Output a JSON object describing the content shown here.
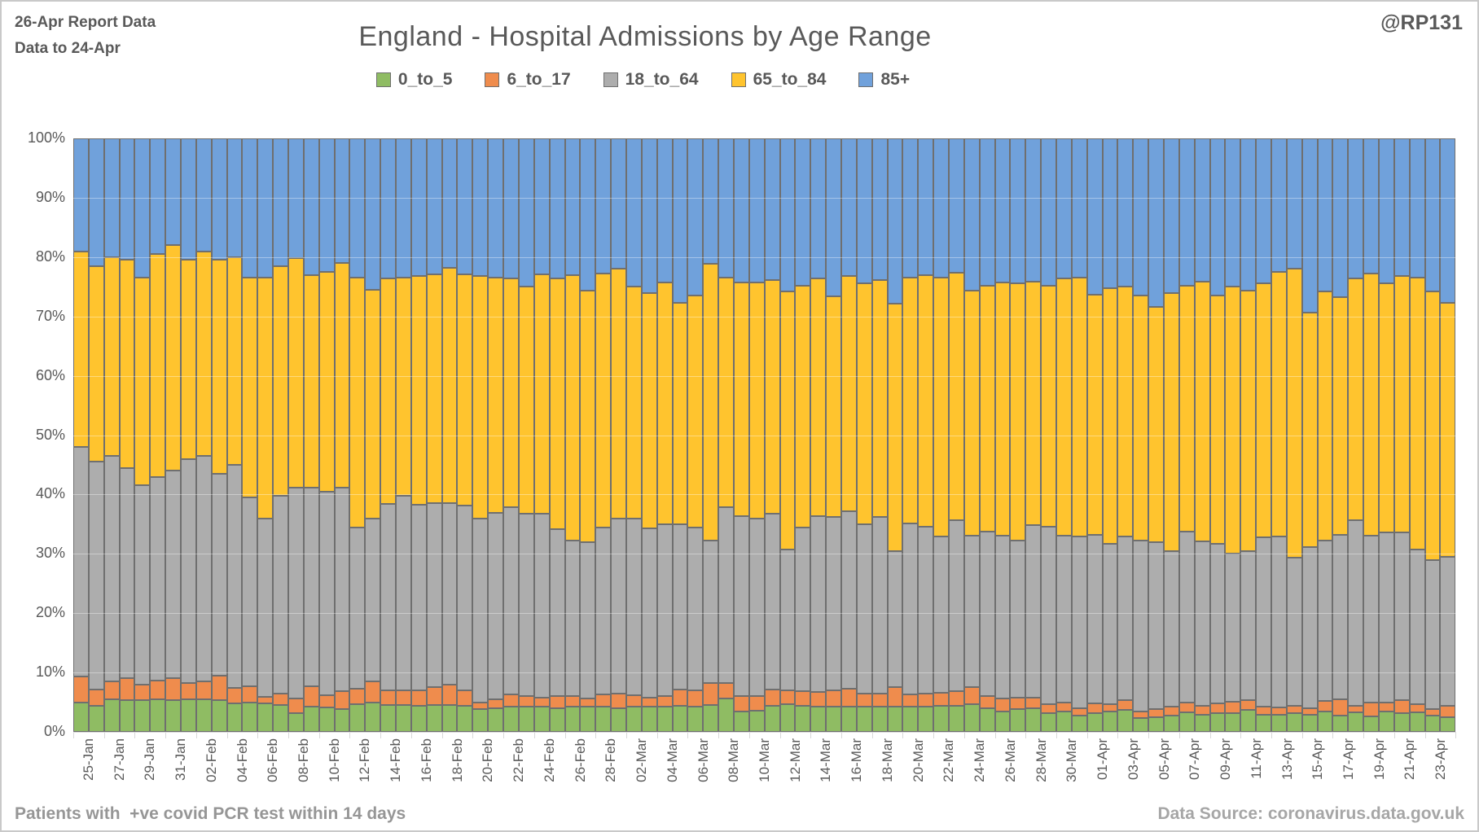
{
  "header": {
    "report_line1": "26-Apr Report Data",
    "report_line2": "Data to 24-Apr",
    "handle": "@RP131"
  },
  "footer": {
    "left": "Patients with  +ve covid PCR test within 14 days",
    "right": "Data Source: coronavirus.data.gov.uk"
  },
  "colors": {
    "green": "#8fbc63",
    "orange": "#ef8c4d",
    "gray": "#adadad",
    "yellow": "#ffc42e",
    "blue": "#70a1db",
    "segment_border": "#6f6f6f",
    "axis_text": "#595959",
    "tick_line": "#d9d9d9"
  },
  "chart_data": {
    "type": "bar",
    "subtype": "stacked-100-percent-column",
    "title": "England - Hospital Admissions by Age Range",
    "xlabel": "",
    "ylabel": "",
    "ylim": [
      0,
      100
    ],
    "grid": true,
    "legend_position": "top",
    "y_ticks": [
      "100%",
      "90%",
      "80%",
      "70%",
      "60%",
      "50%",
      "40%",
      "30%",
      "20%",
      "10%",
      "0%"
    ],
    "x_tick_labels": [
      "25-Jan",
      "27-Jan",
      "29-Jan",
      "31-Jan",
      "02-Feb",
      "04-Feb",
      "06-Feb",
      "08-Feb",
      "10-Feb",
      "12-Feb",
      "14-Feb",
      "16-Feb",
      "18-Feb",
      "20-Feb",
      "22-Feb",
      "24-Feb",
      "26-Feb",
      "28-Feb",
      "02-Mar",
      "04-Mar",
      "06-Mar",
      "08-Mar",
      "10-Mar",
      "12-Mar",
      "14-Mar",
      "16-Mar",
      "18-Mar",
      "20-Mar",
      "22-Mar",
      "24-Mar",
      "26-Mar",
      "28-Mar",
      "30-Mar",
      "01-Apr",
      "03-Apr",
      "05-Apr",
      "07-Apr",
      "09-Apr",
      "11-Apr",
      "13-Apr",
      "15-Apr",
      "17-Apr",
      "19-Apr",
      "21-Apr",
      "23-Apr"
    ],
    "categories": [
      "25-Jan",
      "26-Jan",
      "27-Jan",
      "28-Jan",
      "29-Jan",
      "30-Jan",
      "31-Jan",
      "01-Feb",
      "02-Feb",
      "03-Feb",
      "04-Feb",
      "05-Feb",
      "06-Feb",
      "07-Feb",
      "08-Feb",
      "09-Feb",
      "10-Feb",
      "11-Feb",
      "12-Feb",
      "13-Feb",
      "14-Feb",
      "15-Feb",
      "16-Feb",
      "17-Feb",
      "18-Feb",
      "19-Feb",
      "20-Feb",
      "21-Feb",
      "22-Feb",
      "23-Feb",
      "24-Feb",
      "25-Feb",
      "26-Feb",
      "27-Feb",
      "28-Feb",
      "01-Mar",
      "02-Mar",
      "03-Mar",
      "04-Mar",
      "05-Mar",
      "06-Mar",
      "07-Mar",
      "08-Mar",
      "09-Mar",
      "10-Mar",
      "11-Mar",
      "12-Mar",
      "13-Mar",
      "14-Mar",
      "15-Mar",
      "16-Mar",
      "17-Mar",
      "18-Mar",
      "19-Mar",
      "20-Mar",
      "21-Mar",
      "22-Mar",
      "23-Mar",
      "24-Mar",
      "25-Mar",
      "26-Mar",
      "27-Mar",
      "28-Mar",
      "29-Mar",
      "30-Mar",
      "31-Mar",
      "01-Apr",
      "02-Apr",
      "03-Apr",
      "04-Apr",
      "05-Apr",
      "06-Apr",
      "07-Apr",
      "08-Apr",
      "09-Apr",
      "10-Apr",
      "11-Apr",
      "12-Apr",
      "13-Apr",
      "14-Apr",
      "15-Apr",
      "16-Apr",
      "17-Apr",
      "18-Apr",
      "19-Apr",
      "20-Apr",
      "21-Apr",
      "22-Apr",
      "23-Apr",
      "24-Apr"
    ],
    "series": [
      {
        "name": "0_to_5",
        "color": "#8fbc63",
        "values": [
          5.0,
          4.4,
          5.5,
          5.4,
          5.4,
          5.5,
          5.3,
          5.5,
          5.5,
          5.4,
          4.8,
          4.9,
          4.8,
          4.5,
          3.2,
          4.3,
          4.1,
          3.8,
          4.7,
          5.0,
          4.5,
          4.5,
          4.4,
          4.5,
          4.5,
          4.4,
          3.8,
          4.0,
          4.3,
          4.3,
          4.2,
          4.0,
          4.3,
          4.2,
          4.3,
          4.0,
          4.2,
          4.2,
          4.2,
          4.4,
          4.3,
          4.5,
          5.6,
          3.5,
          3.6,
          4.4,
          4.6,
          4.4,
          4.3,
          4.3,
          4.3,
          4.2,
          4.3,
          4.3,
          4.3,
          4.3,
          4.4,
          4.4,
          4.6,
          4.0,
          3.4,
          3.8,
          4.0,
          3.2,
          3.5,
          2.7,
          3.2,
          3.4,
          3.7,
          2.3,
          2.5,
          2.7,
          3.3,
          2.9,
          3.1,
          3.2,
          3.7,
          2.9,
          2.9,
          3.2,
          2.9,
          3.4,
          2.8,
          3.3,
          2.6,
          3.4,
          3.2,
          3.3,
          2.8,
          2.5
        ]
      },
      {
        "name": "6_to_17",
        "color": "#ef8c4d",
        "values": [
          4.3,
          2.7,
          3.0,
          3.6,
          2.6,
          3.1,
          3.8,
          2.7,
          3.0,
          4.1,
          2.6,
          2.8,
          1.1,
          1.9,
          2.4,
          3.4,
          2.1,
          3.1,
          2.6,
          3.5,
          2.5,
          2.5,
          2.6,
          3.0,
          3.5,
          2.6,
          1.2,
          1.5,
          2.0,
          1.7,
          1.6,
          2.0,
          1.7,
          1.4,
          2.0,
          2.5,
          2.0,
          1.6,
          1.8,
          2.8,
          2.7,
          3.8,
          2.7,
          2.5,
          2.4,
          2.7,
          2.4,
          2.4,
          2.4,
          2.7,
          3.0,
          2.3,
          2.2,
          3.2,
          2.0,
          2.2,
          2.2,
          2.4,
          2.9,
          2.0,
          2.2,
          2.0,
          1.8,
          1.4,
          1.5,
          1.3,
          1.6,
          1.3,
          1.6,
          1.2,
          1.4,
          1.5,
          1.7,
          1.5,
          1.7,
          1.9,
          1.7,
          1.4,
          1.2,
          1.2,
          1.1,
          1.8,
          2.7,
          1.1,
          2.3,
          1.6,
          2.1,
          1.3,
          1.0,
          1.9
        ]
      },
      {
        "name": "18_to_64",
        "color": "#adadad",
        "values": [
          38.7,
          38.4,
          38.0,
          35.5,
          33.5,
          34.4,
          34.9,
          37.8,
          38.0,
          34.0,
          37.6,
          31.8,
          30.1,
          33.4,
          35.6,
          33.5,
          34.3,
          34.3,
          27.1,
          27.5,
          31.4,
          32.8,
          31.3,
          31.0,
          30.5,
          31.1,
          31.0,
          31.4,
          31.6,
          30.7,
          30.9,
          28.1,
          26.2,
          26.3,
          28.1,
          29.5,
          29.8,
          28.5,
          29.0,
          27.8,
          27.4,
          24.0,
          29.6,
          30.3,
          30.0,
          29.6,
          23.7,
          27.6,
          29.6,
          29.2,
          29.9,
          28.5,
          29.7,
          23.0,
          28.8,
          28.1,
          26.3,
          28.9,
          25.5,
          27.7,
          27.4,
          26.5,
          29.0,
          30.0,
          28.0,
          28.9,
          28.4,
          27.0,
          27.6,
          28.7,
          28.0,
          26.3,
          28.7,
          27.7,
          26.9,
          25.0,
          25.1,
          28.5,
          28.8,
          24.9,
          27.2,
          27.1,
          27.7,
          31.3,
          28.1,
          28.6,
          28.3,
          26.2,
          25.1,
          25.1
        ]
      },
      {
        "name": "65_to_84",
        "color": "#ffc42e",
        "values": [
          33.0,
          33.0,
          33.5,
          35.0,
          35.0,
          37.5,
          38.0,
          33.5,
          34.5,
          36.0,
          35.0,
          37.0,
          40.6,
          38.6,
          38.6,
          35.7,
          37.0,
          37.8,
          42.2,
          38.5,
          38.0,
          36.8,
          38.5,
          38.6,
          39.7,
          39.0,
          40.8,
          39.7,
          38.5,
          38.3,
          40.4,
          42.3,
          44.7,
          42.4,
          42.9,
          42.0,
          39.0,
          39.7,
          40.7,
          37.3,
          39.1,
          46.6,
          38.7,
          39.4,
          39.7,
          39.4,
          43.5,
          40.8,
          40.1,
          37.2,
          39.6,
          40.6,
          39.9,
          41.6,
          41.5,
          42.3,
          43.7,
          41.7,
          41.3,
          41.5,
          42.7,
          43.3,
          41.1,
          40.6,
          43.4,
          43.7,
          40.4,
          43.0,
          42.1,
          41.3,
          39.7,
          43.5,
          41.5,
          43.8,
          41.8,
          44.9,
          43.8,
          42.8,
          44.6,
          48.7,
          39.5,
          41.9,
          40.0,
          40.7,
          44.3,
          42.0,
          43.2,
          45.8,
          45.3,
          42.8
        ]
      },
      {
        "name": "85+",
        "color": "#70a1db",
        "values": [
          19.0,
          21.5,
          20.0,
          20.5,
          23.5,
          19.5,
          18.0,
          20.5,
          19.0,
          20.5,
          20.0,
          23.5,
          23.4,
          21.6,
          20.2,
          23.1,
          22.5,
          21.0,
          23.4,
          25.5,
          23.6,
          23.4,
          23.2,
          22.9,
          21.8,
          22.9,
          23.2,
          23.4,
          23.6,
          25.0,
          22.9,
          23.6,
          23.1,
          25.7,
          22.7,
          22.0,
          25.0,
          26.0,
          24.3,
          27.7,
          26.5,
          21.1,
          23.4,
          24.3,
          24.3,
          23.9,
          25.8,
          24.8,
          23.6,
          26.6,
          23.2,
          24.4,
          23.9,
          27.9,
          23.4,
          23.1,
          23.4,
          22.6,
          25.7,
          24.8,
          24.3,
          24.4,
          24.1,
          24.8,
          23.6,
          23.4,
          26.4,
          25.3,
          25.0,
          26.5,
          28.4,
          26.0,
          24.8,
          24.1,
          26.5,
          25.0,
          25.7,
          24.4,
          22.5,
          22.0,
          29.3,
          25.8,
          26.8,
          23.6,
          22.7,
          24.4,
          23.2,
          23.4,
          25.8,
          27.7
        ]
      }
    ]
  }
}
